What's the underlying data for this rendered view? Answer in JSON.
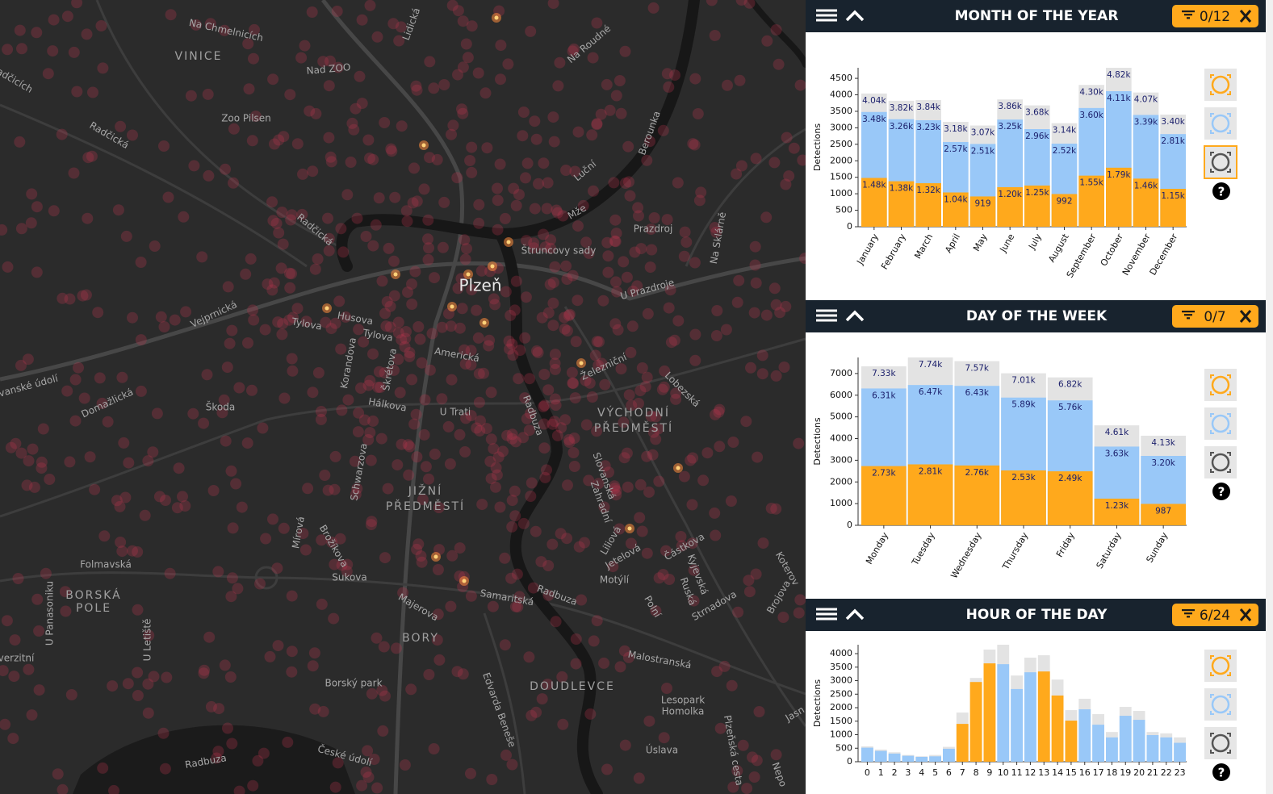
{
  "map": {
    "labels": [
      "Na Chmelnicích",
      "VINICE",
      "Nad ZOO",
      "Zoo Pilsen",
      "Radčická",
      "Radčická",
      "Na Roudné",
      "Lidická",
      "Luční",
      "Prazdroj",
      "Štruncovy sady",
      "Plzeň",
      "U Prazdroje",
      "Na Sklárně",
      "Vejprnická",
      "Tylova",
      "Husova",
      "Tylova",
      "Americká",
      "Železniční",
      "Lobezská",
      "Korandova",
      "Škrétova",
      "Hálkova",
      "U Trati",
      "Škoda",
      "Domažlická",
      "lovanské údolí",
      "VÝCHODNÍ",
      "PŘEDMĚSTÍ",
      "Schwarzova",
      "JIŽNÍ",
      "PŘEDMĚSTÍ",
      "Slovanská",
      "Zahradní",
      "Liliová",
      "Jetelová",
      "Částkova",
      "Mírová",
      "Brožíkova",
      "Folmavská",
      "Sukova",
      "Motýlí",
      "Kyjevská",
      "Ruská",
      "BORSKÁ",
      "POLE",
      "U Panasoniku",
      "Samaritská",
      "Majerova",
      "Polní",
      "Strnadova",
      "Brojova",
      "BORY",
      "U Letiště",
      "Malostranská",
      "Borský park",
      "DOUDLEVCE",
      "Edvarda Beneše",
      "Lesopark",
      "Homolka",
      "Plzeňská cesta",
      "České údolí",
      "Radbuza",
      "Radbuza",
      "Radbuza",
      "Úslava",
      "verzitní",
      "adčicích",
      "Koterov",
      "Jasn",
      "Nepo",
      "Berounka",
      "Mže"
    ]
  },
  "chart_data": [
    {
      "type": "bar",
      "title": "MONTH OF THE YEAR",
      "filter": "0/12",
      "y_label": "Detections",
      "help": "?",
      "categories": [
        "January",
        "February",
        "March",
        "April",
        "May",
        "June",
        "July",
        "August",
        "September",
        "October",
        "November",
        "December"
      ],
      "series": [
        {
          "color": "#e3e3e3",
          "values": [
            4040,
            3820,
            3840,
            3180,
            3070,
            3860,
            3680,
            3140,
            4300,
            4820,
            4070,
            3400
          ],
          "value_labels": [
            "4.04k",
            "3.82k",
            "3.84k",
            "3.18k",
            "3.07k",
            "3.86k",
            "3.68k",
            "3.14k",
            "4.30k",
            "4.82k",
            "4.07k",
            "3.40k"
          ]
        },
        {
          "color": "#99c8f8",
          "values": [
            3480,
            3260,
            3230,
            2570,
            2510,
            3250,
            2960,
            2520,
            3600,
            4110,
            3390,
            2810
          ],
          "value_labels": [
            "3.48k",
            "3.26k",
            "3.23k",
            "2.57k",
            "2.51k",
            "3.25k",
            "2.96k",
            "2.52k",
            "3.60k",
            "4.11k",
            "3.39k",
            "2.81k"
          ]
        },
        {
          "color": "#ffa91c",
          "values": [
            1480,
            1380,
            1320,
            1040,
            919,
            1200,
            1250,
            992,
            1550,
            1790,
            1460,
            1150
          ],
          "value_labels": [
            "1.48k",
            "1.38k",
            "1.32k",
            "1.04k",
            "919",
            "1.20k",
            "1.25k",
            "992",
            "1.55k",
            "1.79k",
            "1.46k",
            "1.15k"
          ]
        }
      ],
      "ylim": [
        0,
        4820
      ],
      "yticks": [
        0,
        500,
        1000,
        1500,
        2000,
        2500,
        3000,
        3500,
        4000,
        4500
      ]
    },
    {
      "type": "bar",
      "title": "DAY OF THE WEEK",
      "filter": "0/7",
      "y_label": "Detections",
      "help": "?",
      "categories": [
        "Monday",
        "Tuesday",
        "Wednesday",
        "Thursday",
        "Friday",
        "Saturday",
        "Sunday"
      ],
      "series": [
        {
          "color": "#e3e3e3",
          "values": [
            7330,
            7740,
            7570,
            7010,
            6820,
            4610,
            4130
          ],
          "value_labels": [
            "7.33k",
            "7.74k",
            "7.57k",
            "7.01k",
            "6.82k",
            "4.61k",
            "4.13k"
          ]
        },
        {
          "color": "#99c8f8",
          "values": [
            6310,
            6470,
            6430,
            5890,
            5760,
            3630,
            3200
          ],
          "value_labels": [
            "6.31k",
            "6.47k",
            "6.43k",
            "5.89k",
            "5.76k",
            "3.63k",
            "3.20k"
          ]
        },
        {
          "color": "#ffa91c",
          "values": [
            2730,
            2810,
            2760,
            2530,
            2490,
            1230,
            987
          ],
          "value_labels": [
            "2.73k",
            "2.81k",
            "2.76k",
            "2.53k",
            "2.49k",
            "1.23k",
            "987"
          ]
        }
      ],
      "ylim": [
        0,
        7740
      ],
      "yticks": [
        0,
        1000,
        2000,
        3000,
        4000,
        5000,
        6000,
        7000
      ]
    },
    {
      "type": "bar",
      "title": "HOUR OF THE DAY",
      "filter": "6/24",
      "y_label": "Detections",
      "help": "?",
      "categories": [
        "0",
        "1",
        "2",
        "3",
        "4",
        "5",
        "6",
        "7",
        "8",
        "9",
        "10",
        "11",
        "12",
        "13",
        "14",
        "15",
        "16",
        "17",
        "18",
        "19",
        "20",
        "21",
        "22",
        "23"
      ],
      "series": [
        {
          "color": "#e3e3e3",
          "values": [
            570,
            450,
            350,
            250,
            200,
            250,
            550,
            1820,
            3100,
            4150,
            4330,
            3190,
            3850,
            3940,
            3040,
            1910,
            2330,
            1760,
            1100,
            2030,
            1880,
            1100,
            1050,
            900
          ]
        },
        {
          "color": "#99c8f8",
          "values": [
            520,
            400,
            300,
            220,
            180,
            200,
            480,
            null,
            null,
            null,
            3610,
            2690,
            3310,
            null,
            null,
            null,
            1940,
            1370,
            900,
            1700,
            1550,
            985,
            900,
            700
          ]
        },
        {
          "color": "#ffa91c",
          "values": [
            null,
            null,
            null,
            null,
            null,
            null,
            null,
            1400,
            2950,
            3640,
            null,
            null,
            null,
            3340,
            2450,
            1520,
            null,
            null,
            null,
            null,
            null,
            null,
            null,
            null
          ]
        }
      ],
      "ylim": [
        0,
        4330
      ],
      "yticks": [
        0,
        500,
        1000,
        1500,
        2000,
        2500,
        3000,
        3500,
        4000
      ]
    }
  ]
}
